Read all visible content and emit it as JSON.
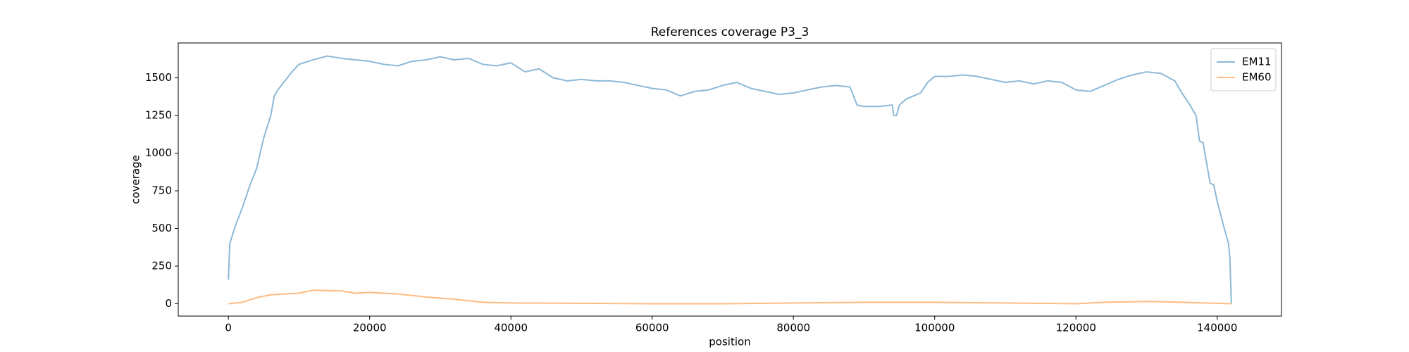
{
  "chart_data": {
    "type": "line",
    "title": "References coverage P3_3",
    "x_label": "position",
    "y_label": "coverage",
    "xlim": [
      -7100,
      149100
    ],
    "ylim": [
      -82,
      1732
    ],
    "xticks": [
      0,
      20000,
      40000,
      60000,
      80000,
      100000,
      120000,
      140000
    ],
    "yticks": [
      0,
      250,
      500,
      750,
      1000,
      1250,
      1500
    ],
    "legend": "upper right",
    "series": [
      {
        "name": "EM11",
        "color": "#8cb9d8",
        "x": [
          0,
          200,
          1000,
          2000,
          3000,
          4000,
          5000,
          6000,
          6500,
          7000,
          8000,
          9000,
          10000,
          12000,
          14000,
          16000,
          18000,
          20000,
          22000,
          24000,
          26000,
          28000,
          30000,
          32000,
          34000,
          36000,
          38000,
          40000,
          42000,
          44000,
          46000,
          48000,
          50000,
          52000,
          54000,
          56000,
          58000,
          60000,
          62000,
          64000,
          66000,
          68000,
          70000,
          72000,
          74000,
          76000,
          78000,
          80000,
          82000,
          84000,
          86000,
          88000,
          89000,
          90000,
          92000,
          94000,
          94200,
          94600,
          95000,
          96000,
          98000,
          99000,
          100000,
          102000,
          104000,
          106000,
          108000,
          110000,
          112000,
          114000,
          116000,
          118000,
          120000,
          122000,
          124000,
          126000,
          128000,
          130000,
          132000,
          134000,
          135000,
          136000,
          137000,
          137500,
          138000,
          139000,
          139500,
          140000,
          141000,
          141600,
          141800,
          142000
        ],
        "values": [
          160,
          400,
          520,
          640,
          780,
          900,
          1100,
          1250,
          1380,
          1420,
          1480,
          1540,
          1590,
          1620,
          1645,
          1630,
          1620,
          1610,
          1590,
          1580,
          1610,
          1620,
          1640,
          1620,
          1630,
          1590,
          1580,
          1600,
          1540,
          1560,
          1500,
          1480,
          1490,
          1480,
          1480,
          1470,
          1450,
          1430,
          1420,
          1380,
          1410,
          1420,
          1450,
          1470,
          1430,
          1410,
          1390,
          1400,
          1420,
          1440,
          1450,
          1440,
          1320,
          1310,
          1310,
          1320,
          1250,
          1250,
          1320,
          1360,
          1400,
          1470,
          1510,
          1510,
          1520,
          1510,
          1490,
          1470,
          1480,
          1460,
          1480,
          1470,
          1420,
          1410,
          1450,
          1490,
          1520,
          1540,
          1530,
          1480,
          1400,
          1330,
          1250,
          1080,
          1070,
          800,
          790,
          680,
          500,
          400,
          300,
          0
        ]
      },
      {
        "name": "EM60",
        "color": "#ffbb80",
        "x": [
          0,
          2000,
          4000,
          6000,
          10000,
          12000,
          16000,
          18000,
          20000,
          24000,
          28000,
          32000,
          36000,
          40000,
          50000,
          60000,
          70000,
          80000,
          90000,
          100000,
          110000,
          120000,
          124000,
          130000,
          135000,
          142000
        ],
        "values": [
          0,
          10,
          40,
          60,
          70,
          90,
          85,
          70,
          75,
          65,
          45,
          30,
          10,
          5,
          3,
          0,
          0,
          5,
          10,
          10,
          5,
          0,
          10,
          15,
          10,
          0
        ]
      }
    ]
  }
}
